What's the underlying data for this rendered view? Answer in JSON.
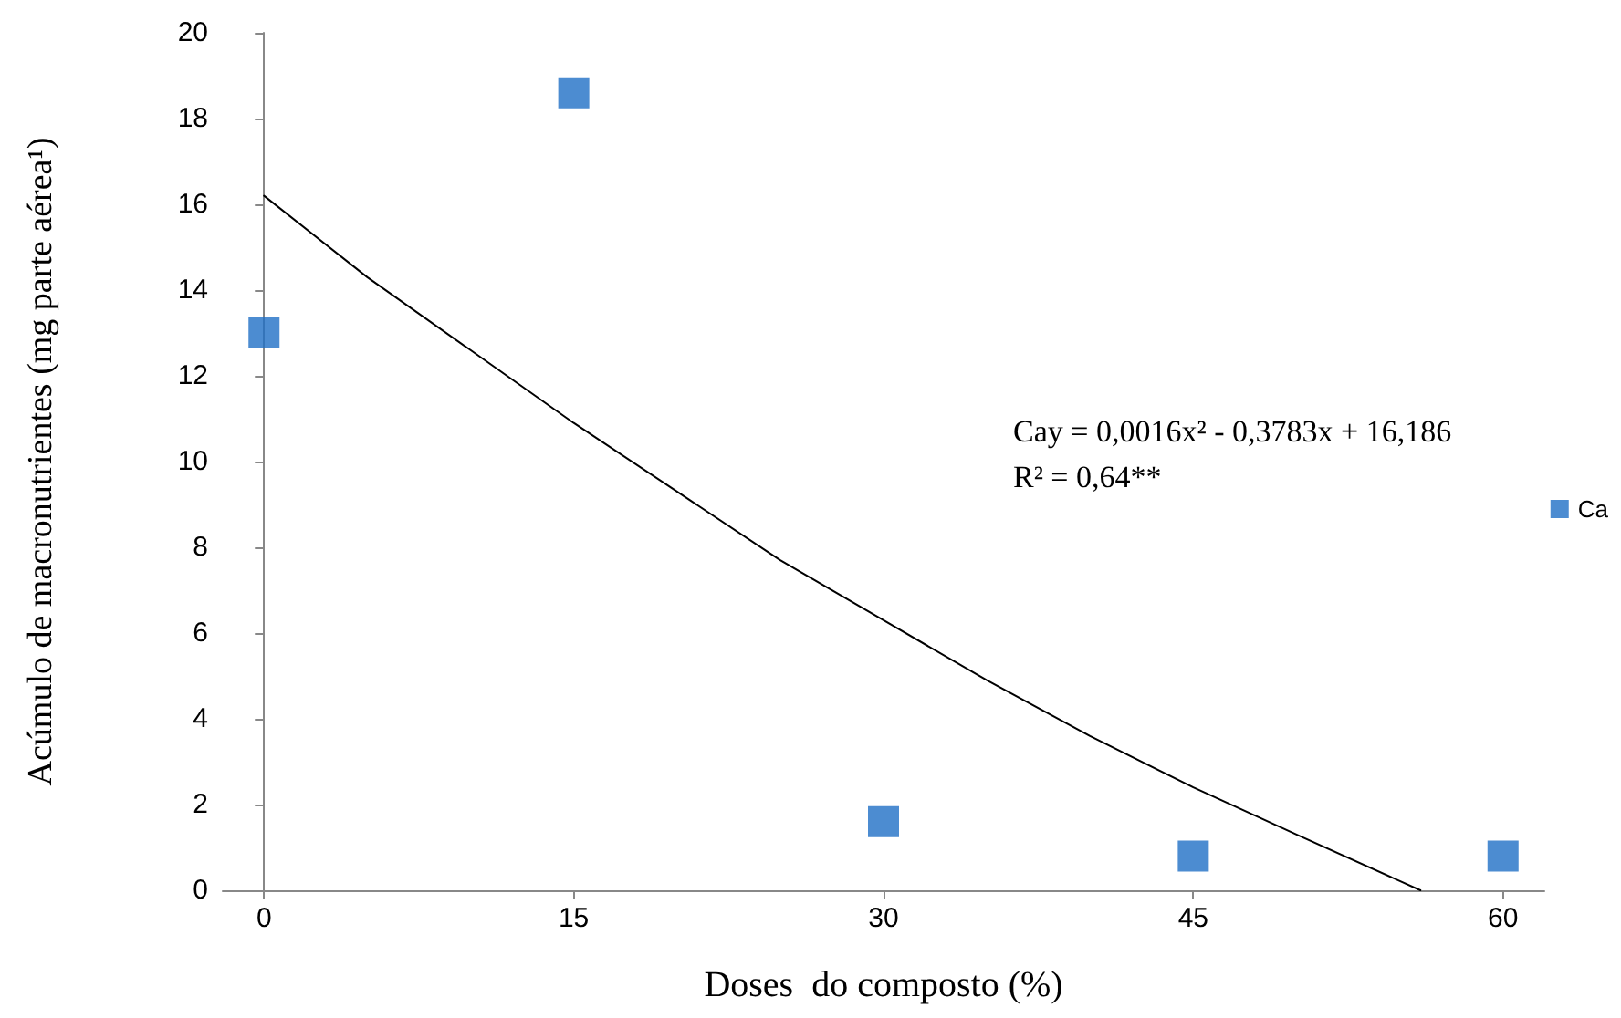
{
  "chart_data": {
    "type": "scatter",
    "xlabel": "Doses  do composto (%)",
    "ylabel": "Acúmulo de macronutrientes (mg parte aérea¹)",
    "x": [
      0,
      15,
      30,
      45,
      60
    ],
    "series": [
      {
        "name": "Ca",
        "color": "#1f6fc5",
        "values": [
          13,
          18.6,
          1.6,
          0.8,
          0.8
        ],
        "marker": "square"
      },
      {
        "type": "line",
        "color": "#000000",
        "x": [
          0,
          5,
          10,
          15,
          20,
          25,
          30,
          35,
          40,
          45,
          50,
          56
        ],
        "values": [
          16.2,
          14.3,
          12.6,
          10.9,
          9.3,
          7.7,
          6.3,
          4.9,
          3.6,
          2.4,
          1.3,
          0
        ],
        "marker": "none"
      }
    ],
    "annotations": [
      "Cay = 0,0016x² - 0,3783x + 16,186",
      "R² = 0,64**"
    ],
    "xlim": [
      -2,
      62
    ],
    "xticks": [
      0,
      15,
      30,
      45,
      60
    ],
    "ylim": [
      0,
      20
    ],
    "yticks": [
      0,
      2,
      4,
      6,
      8,
      10,
      12,
      14,
      16,
      18,
      20
    ],
    "grid": false,
    "legend": "right"
  }
}
